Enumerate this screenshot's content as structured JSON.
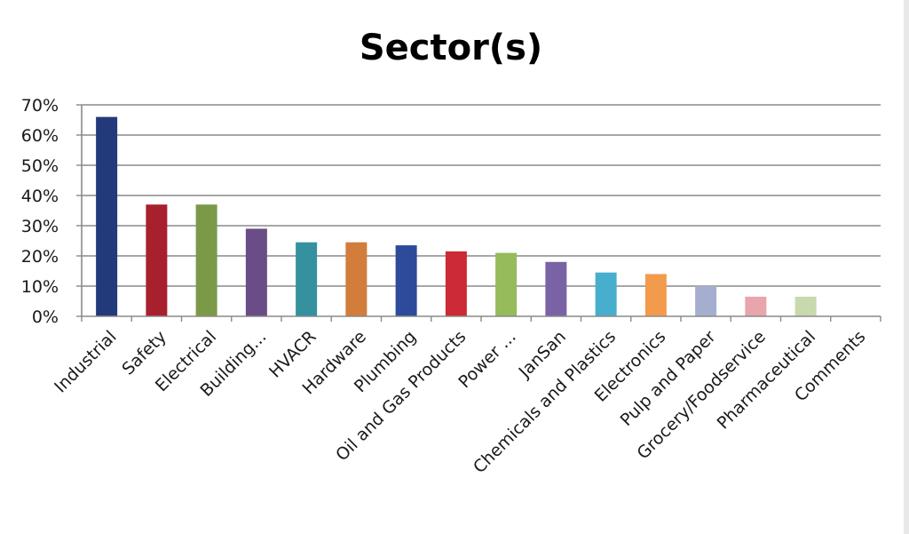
{
  "chart_data": {
    "type": "bar",
    "title": "Sector(s)",
    "xlabel": "",
    "ylabel": "",
    "ylim": [
      0,
      70
    ],
    "y_ticks": [
      "0%",
      "10%",
      "20%",
      "30%",
      "40%",
      "50%",
      "60%",
      "70%"
    ],
    "grid": true,
    "legend": "none",
    "categories": [
      "Industrial",
      "Safety",
      "Electrical",
      "Building...",
      "HVACR",
      "Hardware",
      "Plumbing",
      "Oil and Gas Products",
      "Power ...",
      "JanSan",
      "Chemicals and Plastics",
      "Electronics",
      "Pulp and Paper",
      "Grocery/Foodservice",
      "Pharmaceutical",
      "Comments"
    ],
    "values": [
      66,
      37,
      37,
      29,
      24.5,
      24.5,
      23.5,
      21.5,
      21,
      18,
      14.5,
      14,
      10,
      6.5,
      6.5,
      0
    ],
    "colors": [
      "#233a7a",
      "#a8202e",
      "#7b9a47",
      "#6a4c86",
      "#36919f",
      "#d27d3b",
      "#2d4a9b",
      "#cc2a36",
      "#95bb5a",
      "#7a63a4",
      "#48aecd",
      "#f39b4c",
      "#a6aed0",
      "#e8a5ab",
      "#c8d9ae",
      "#cccccc"
    ]
  }
}
